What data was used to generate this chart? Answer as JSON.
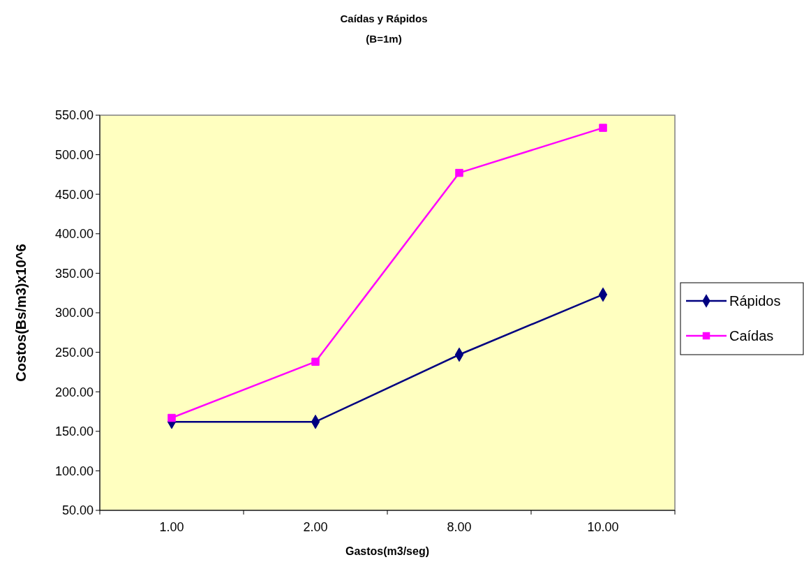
{
  "chart_data": {
    "type": "line",
    "title": "Caídas y Rápidos",
    "subtitle": "(B=1m)",
    "xlabel": "Gastos(m3/seg)",
    "ylabel": "Costos(Bs/m3)x10^6",
    "categories": [
      "1.00",
      "2.00",
      "8.00",
      "10.00"
    ],
    "series": [
      {
        "name": "Rápidos",
        "color": "#000080",
        "marker": "diamond",
        "values": [
          162,
          162,
          247,
          323
        ]
      },
      {
        "name": "Caídas",
        "color": "#ff00ff",
        "marker": "square",
        "values": [
          167,
          238,
          477,
          534
        ]
      }
    ],
    "ylim": [
      50,
      550
    ],
    "yticks": [
      {
        "value": 50,
        "label": "50.00"
      },
      {
        "value": 100,
        "label": "100.00"
      },
      {
        "value": 150,
        "label": "150.00"
      },
      {
        "value": 200,
        "label": "200.00"
      },
      {
        "value": 250,
        "label": "250.00"
      },
      {
        "value": 300,
        "label": "300.00"
      },
      {
        "value": 350,
        "label": "350.00"
      },
      {
        "value": 400,
        "label": "400.00"
      },
      {
        "value": 450,
        "label": "450.00"
      },
      {
        "value": 500,
        "label": "500.00"
      },
      {
        "value": 550,
        "label": "550.00"
      }
    ],
    "grid": false,
    "legend": "right",
    "line_style": "solid"
  }
}
